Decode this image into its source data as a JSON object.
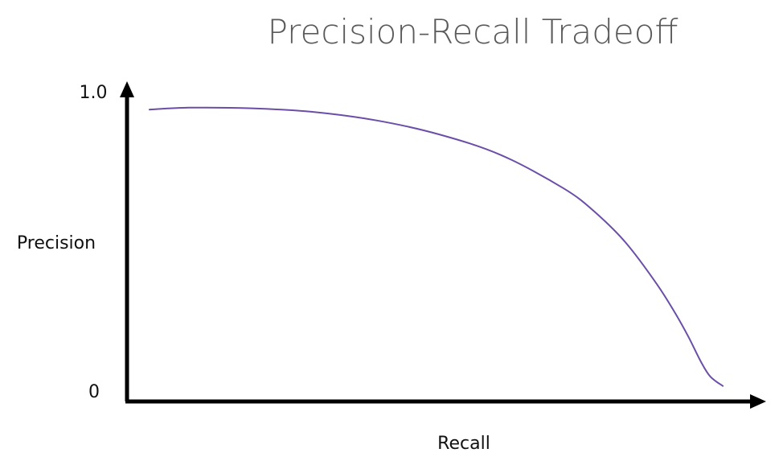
{
  "chart_data": {
    "type": "line",
    "title": "Precision-Recall Tradeoff",
    "xlabel": "Recall",
    "ylabel": "Precision",
    "y_ticks": [
      "1.0",
      "0"
    ],
    "xlim": [
      0,
      1
    ],
    "ylim": [
      0,
      1
    ],
    "grid": false,
    "legend": "none",
    "series": [
      {
        "color": "#6b4ea8",
        "x": [
          0.036,
          0.1,
          0.2,
          0.3,
          0.4,
          0.5,
          0.6,
          0.7,
          0.75,
          0.8,
          0.85,
          0.88,
          0.9,
          0.92,
          0.935,
          0.955
        ],
        "y": [
          0.94,
          0.946,
          0.944,
          0.932,
          0.905,
          0.86,
          0.793,
          0.686,
          0.61,
          0.51,
          0.376,
          0.28,
          0.208,
          0.128,
          0.08,
          0.05
        ]
      }
    ]
  },
  "colors": {
    "axis": "#000000",
    "series": "#6b4ea8",
    "title": "#5a5a5a"
  }
}
